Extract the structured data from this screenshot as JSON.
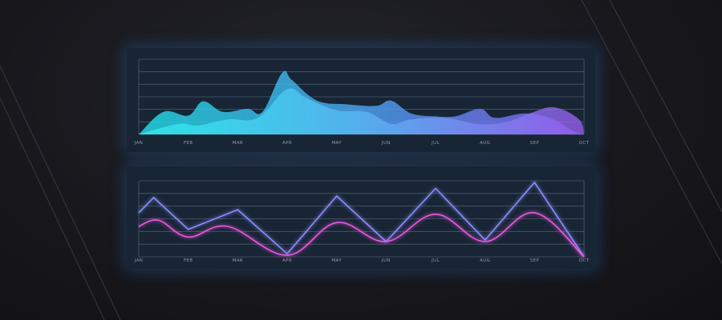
{
  "colors": {
    "background": "#17171c",
    "panel": "#172534",
    "grid": "#5d6b80",
    "area_start": "#1fe0e8",
    "area_end": "#8a5af0",
    "line_blue": "#8a8cff",
    "line_pink": "#ee55e0"
  },
  "chart_data": [
    {
      "type": "area",
      "title": "",
      "xlabel": "",
      "ylabel": "",
      "categories": [
        "JAN",
        "FEB",
        "MAR",
        "APR",
        "MAY",
        "JUN",
        "JUL",
        "AUG",
        "SEP",
        "OCT"
      ],
      "grid": true,
      "ylim": [
        0,
        100
      ],
      "series": [
        {
          "x": [
            0,
            0.5,
            1,
            1.3,
            1.7,
            2.2,
            2.5,
            2.9,
            3.1,
            3.6,
            4.2,
            4.8,
            5.1,
            5.5,
            6.0,
            6.4,
            6.9,
            7.2,
            7.8,
            8.3,
            8.8,
            9.0
          ],
          "y": [
            0,
            30,
            25,
            44,
            30,
            34,
            30,
            82,
            72,
            45,
            40,
            38,
            45,
            28,
            24,
            24,
            34,
            22,
            28,
            22,
            4,
            0
          ]
        },
        {
          "x": [
            0,
            0.8,
            1.2,
            1.8,
            2.4,
            3.0,
            3.4,
            4.0,
            4.6,
            5.1,
            5.5,
            6.2,
            6.8,
            7.4,
            7.9,
            8.4,
            8.9,
            9.0
          ],
          "y": [
            0,
            14,
            12,
            20,
            22,
            60,
            48,
            32,
            30,
            14,
            20,
            22,
            14,
            16,
            28,
            36,
            20,
            0
          ]
        }
      ]
    },
    {
      "type": "line",
      "title": "",
      "xlabel": "",
      "ylabel": "",
      "categories": [
        "JAN",
        "FEB",
        "MAR",
        "APR",
        "MAY",
        "JUN",
        "JUL",
        "AUG",
        "SEP",
        "OCT"
      ],
      "grid": true,
      "ylim": [
        0,
        100
      ],
      "series": [
        {
          "shape": "straight",
          "x": [
            0,
            0.3,
            1,
            2,
            3,
            4,
            5,
            6,
            7,
            8,
            9
          ],
          "y": [
            58,
            78,
            36,
            62,
            4,
            80,
            20,
            90,
            22,
            98,
            0
          ]
        },
        {
          "shape": "smooth",
          "x": [
            0,
            0.4,
            1,
            1.8,
            3,
            4,
            5,
            6,
            7,
            8,
            9
          ],
          "y": [
            40,
            48,
            26,
            40,
            2,
            45,
            20,
            56,
            20,
            58,
            0
          ]
        }
      ]
    }
  ]
}
